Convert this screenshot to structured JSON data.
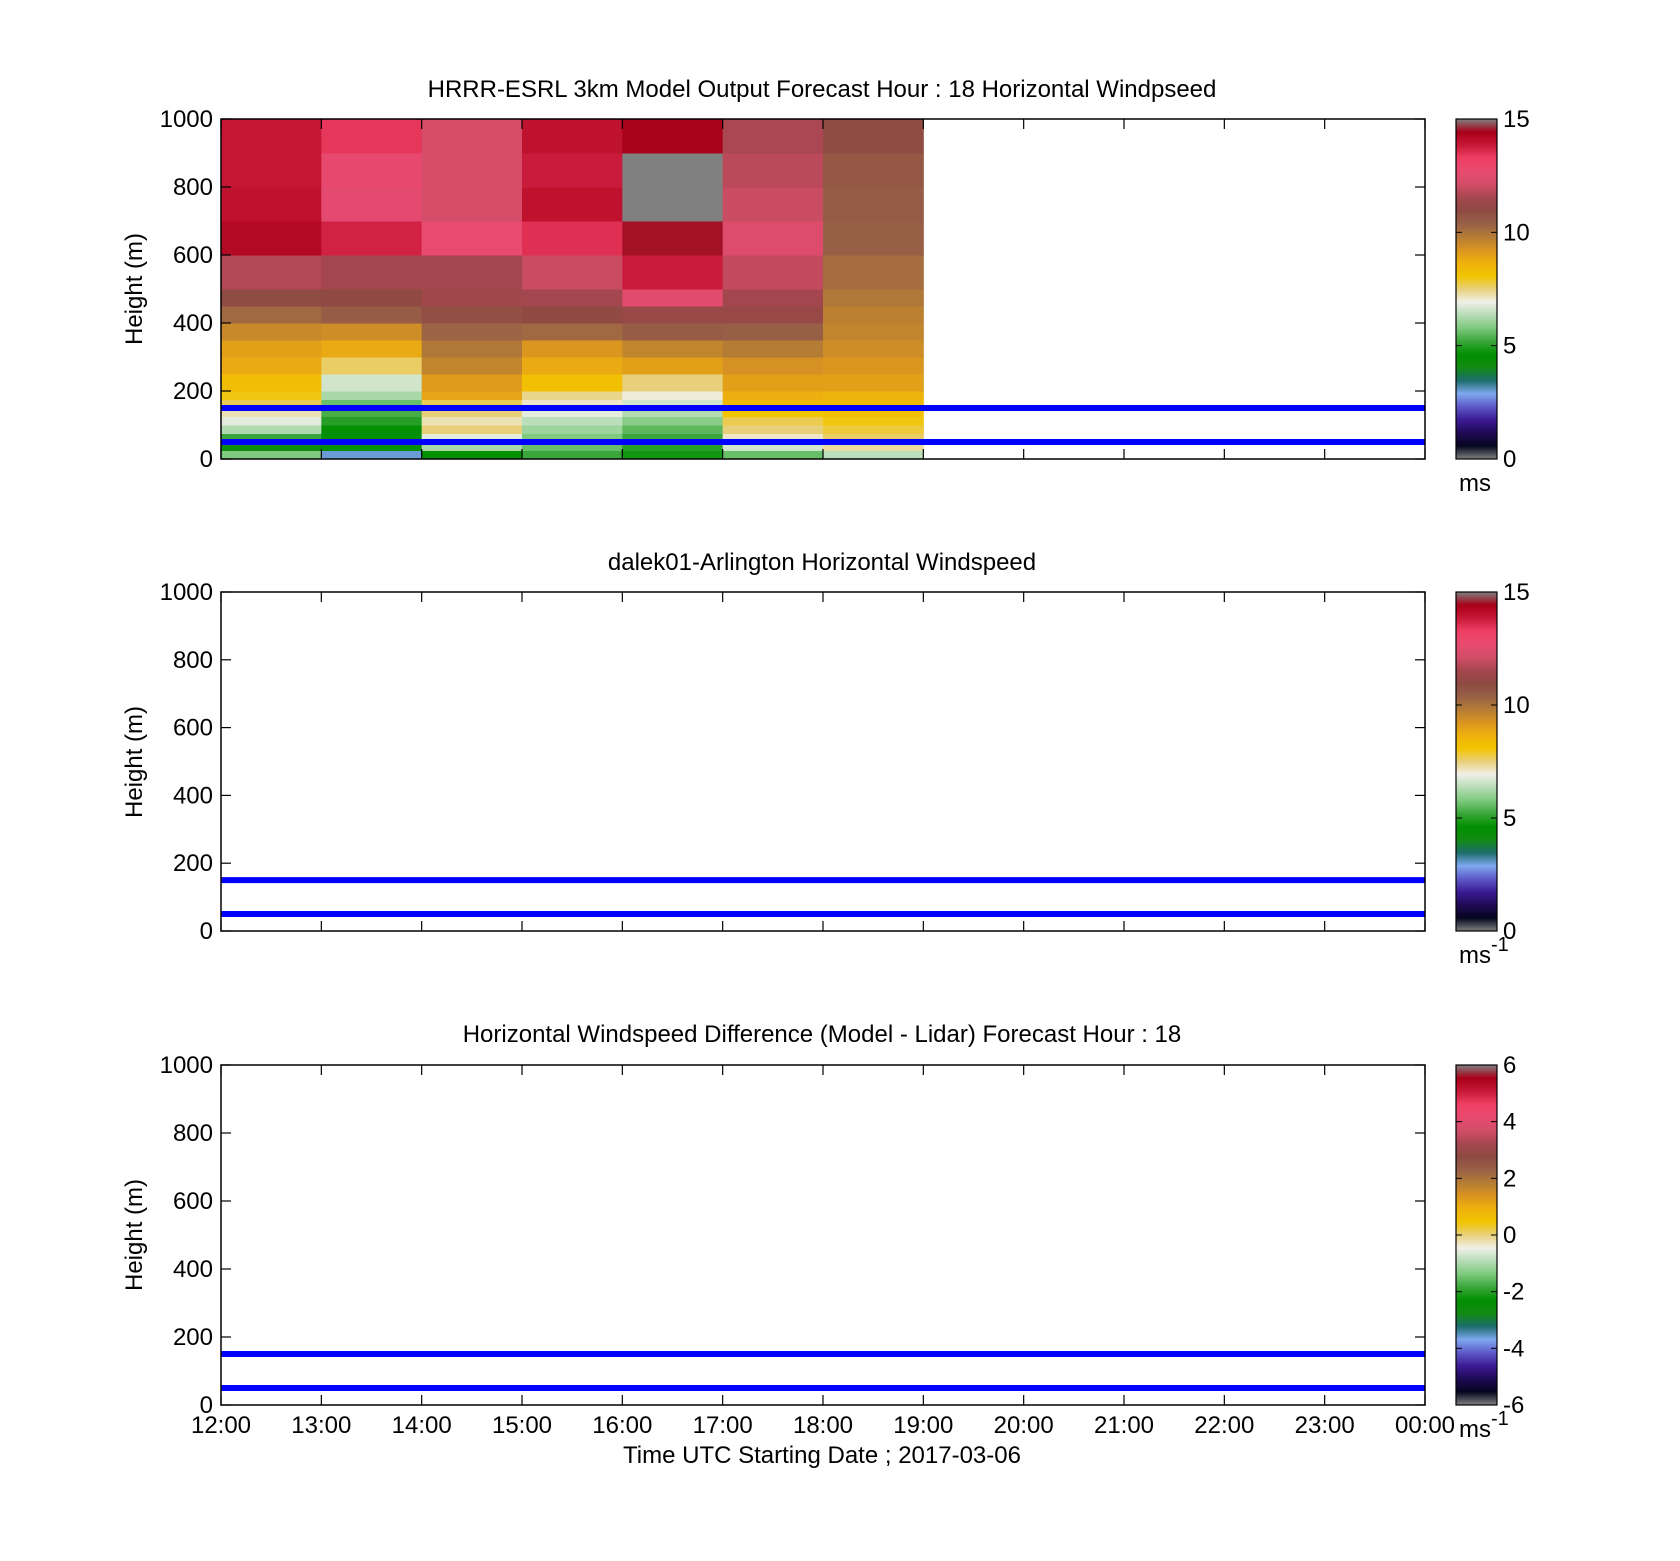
{
  "figure": {
    "xlabel": "Time UTC  Starting Date ; 2017-03-06",
    "x_ticks": [
      "12:00",
      "13:00",
      "14:00",
      "15:00",
      "16:00",
      "17:00",
      "18:00",
      "19:00",
      "20:00",
      "21:00",
      "22:00",
      "23:00",
      "00:00"
    ]
  },
  "chart_data": [
    {
      "type": "heatmap",
      "title": "HRRR-ESRL 3km Model Output   Forecast Hour : 18 Horizontal Windpseed",
      "ylabel": "Height (m)",
      "ylim": [
        0,
        1000
      ],
      "y_ticks": [
        "0",
        "200",
        "400",
        "600",
        "800",
        "1000"
      ],
      "xlim_hours": [
        0,
        12
      ],
      "colorbar": {
        "ticks": [
          "0",
          "5",
          "10",
          "15"
        ],
        "unit": "ms",
        "unit_sup": "",
        "range": [
          0,
          15
        ]
      },
      "reference_lines_m": [
        50,
        150
      ],
      "height_edges_m": [
        0,
        25,
        50,
        75,
        100,
        125,
        150,
        175,
        200,
        250,
        300,
        350,
        400,
        450,
        500,
        600,
        700,
        800,
        900,
        1000
      ],
      "columns": [
        {
          "time": "12:00",
          "values": [
            5.8,
            4.2,
            5.2,
            6.3,
            6.8,
            7.2,
            7.7,
            8.0,
            8.3,
            8.8,
            9.0,
            9.5,
            10.2,
            10.9,
            11.7,
            14.2,
            14.0,
            13.9,
            13.9
          ]
        },
        {
          "time": "13:00",
          "values": [
            3.0,
            4.5,
            4.5,
            4.5,
            5.0,
            5.3,
            5.6,
            6.2,
            6.6,
            7.6,
            8.8,
            9.4,
            10.5,
            11.0,
            11.5,
            13.7,
            12.6,
            12.8,
            13.4
          ]
        },
        {
          "time": "14:00",
          "values": [
            4.6,
            6.2,
            6.8,
            7.5,
            7.2,
            7.5,
            7.7,
            8.9,
            9.1,
            9.6,
            9.9,
            10.3,
            10.8,
            11.4,
            11.5,
            12.7,
            12.2,
            12.2,
            12.2
          ]
        },
        {
          "time": "15:00",
          "values": [
            5.2,
            5.6,
            5.8,
            6.1,
            6.4,
            6.8,
            7.1,
            7.4,
            8.2,
            8.8,
            9.2,
            10.2,
            11.0,
            11.5,
            12.0,
            13.5,
            14.0,
            13.8,
            14.0
          ]
        },
        {
          "time": "16:00",
          "values": [
            4.8,
            5.0,
            5.2,
            5.5,
            5.9,
            6.3,
            6.6,
            7.0,
            7.5,
            9.0,
            9.6,
            10.5,
            11.2,
            12.5,
            13.8,
            14.5,
            15.5,
            15.2,
            14.4
          ]
        },
        {
          "time": "17:00",
          "values": [
            5.6,
            6.6,
            7.1,
            7.5,
            7.7,
            8.1,
            8.4,
            8.7,
            9.0,
            9.3,
            9.8,
            10.4,
            11.2,
            11.5,
            11.9,
            12.4,
            12.0,
            11.8,
            11.6
          ]
        },
        {
          "time": "18:00",
          "values": [
            6.4,
            7.3,
            7.6,
            7.8,
            8.0,
            8.2,
            8.4,
            8.6,
            9.0,
            9.2,
            9.4,
            9.6,
            9.7,
            9.9,
            10.1,
            10.4,
            10.5,
            10.6,
            10.9
          ]
        }
      ]
    },
    {
      "type": "heatmap",
      "title": "dalek01-Arlington  Horizontal Windspeed",
      "ylabel": "Height (m)",
      "ylim": [
        0,
        1000
      ],
      "y_ticks": [
        "0",
        "200",
        "400",
        "600",
        "800",
        "1000"
      ],
      "xlim_hours": [
        0,
        12
      ],
      "colorbar": {
        "ticks": [
          "0",
          "5",
          "10",
          "15"
        ],
        "unit": "ms",
        "unit_sup": "-1",
        "range": [
          0,
          15
        ]
      },
      "reference_lines_m": [
        50,
        150
      ],
      "columns": []
    },
    {
      "type": "heatmap",
      "title": "Horizontal Windspeed Difference (Model - Lidar) Forecast Hour : 18",
      "ylabel": "Height (m)",
      "ylim": [
        0,
        1000
      ],
      "y_ticks": [
        "0",
        "200",
        "400",
        "600",
        "800",
        "1000"
      ],
      "xlim_hours": [
        0,
        12
      ],
      "colorbar": {
        "ticks": [
          "-6",
          "-4",
          "-2",
          "0",
          "2",
          "4",
          "6"
        ],
        "unit": "ms",
        "unit_sup": "-1",
        "range": [
          -6,
          6
        ]
      },
      "reference_lines_m": [
        50,
        150
      ],
      "columns": []
    }
  ],
  "colors": {
    "reference_line": "#0000ff",
    "colormap": [
      "#808080",
      "#05051e",
      "#1f0a55",
      "#3c1a96",
      "#5d5ac8",
      "#7fa8ef",
      "#1c6d6d",
      "#128a12",
      "#009000",
      "#3aa63a",
      "#7dc97d",
      "#b6dcb6",
      "#f0f0e8",
      "#e8d07a",
      "#f2c400",
      "#efb10e",
      "#d99420",
      "#b47c35",
      "#986047",
      "#8e4a42",
      "#a6464f",
      "#d24d68",
      "#e84a70",
      "#ef3f64",
      "#c81838",
      "#a80018",
      "#808080"
    ]
  }
}
